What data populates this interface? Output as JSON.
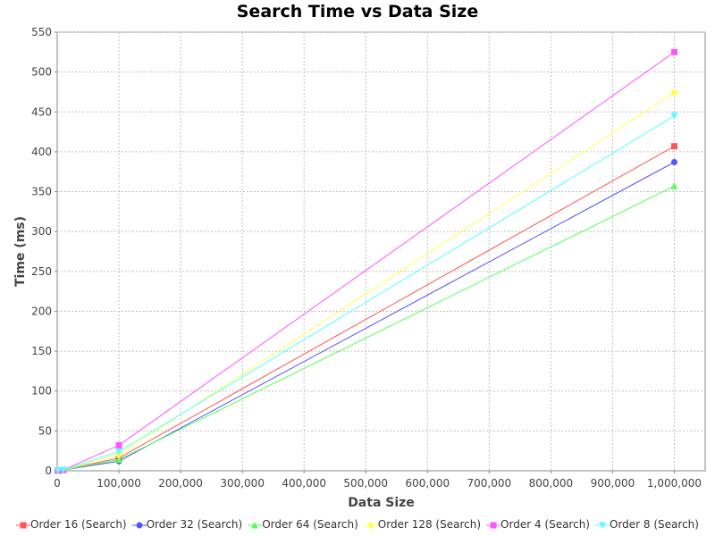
{
  "chart_data": {
    "type": "line",
    "title": "Search Time vs Data Size",
    "xlabel": "Data Size",
    "ylabel": "Time (ms)",
    "xlim": [
      0,
      1050000
    ],
    "ylim": [
      0,
      550
    ],
    "x_ticks": [
      "0",
      "100,000",
      "200,000",
      "300,000",
      "400,000",
      "500,000",
      "600,000",
      "700,000",
      "800,000",
      "900,000",
      "1,000,000"
    ],
    "y_ticks": [
      "0",
      "50",
      "100",
      "150",
      "200",
      "250",
      "300",
      "350",
      "400",
      "450",
      "500",
      "550"
    ],
    "grid": true,
    "legend_position": "bottom",
    "x": [
      1000,
      10000,
      100000,
      1000000
    ],
    "series": [
      {
        "name": "Order 16 (Search)",
        "color": "#ff5555",
        "marker": "square",
        "values": [
          0.3,
          1,
          16,
          407
        ]
      },
      {
        "name": "Order 32 (Search)",
        "color": "#5555ff",
        "marker": "circle",
        "values": [
          0.3,
          1,
          12,
          387
        ]
      },
      {
        "name": "Order 64 (Search)",
        "color": "#55ff55",
        "marker": "triangle-up",
        "values": [
          0.3,
          1,
          14,
          357
        ]
      },
      {
        "name": "Order 128 (Search)",
        "color": "#ffff55",
        "marker": "diamond",
        "values": [
          0.3,
          1,
          20,
          474
        ]
      },
      {
        "name": "Order 4 (Search)",
        "color": "#ff55ff",
        "marker": "square",
        "values": [
          0.3,
          1,
          32,
          525
        ]
      },
      {
        "name": "Order 8 (Search)",
        "color": "#55ffff",
        "marker": "triangle-down",
        "values": [
          0.3,
          1,
          24,
          445
        ]
      }
    ]
  }
}
